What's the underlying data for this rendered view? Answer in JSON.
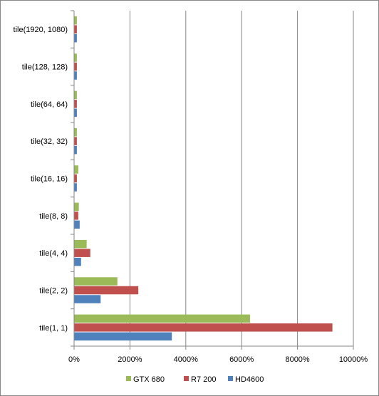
{
  "chart_data": {
    "type": "bar",
    "orientation": "horizontal",
    "categories": [
      "tile(1920, 1080)",
      "tile(128, 128)",
      "tile(64, 64)",
      "tile(32, 32)",
      "tile(16, 16)",
      "tile(8, 8)",
      "tile(4, 4)",
      "tile(2, 2)",
      "tile(1, 1)"
    ],
    "series": [
      {
        "name": "GTX 680",
        "color": "#9bbb59",
        "values": [
          100,
          100,
          100,
          100,
          150,
          170,
          450,
          1550,
          6300
        ]
      },
      {
        "name": "R7 200",
        "color": "#c0504d",
        "values": [
          100,
          100,
          100,
          100,
          100,
          150,
          580,
          2300,
          9250
        ]
      },
      {
        "name": "HD4600",
        "color": "#4f81bd",
        "values": [
          100,
          100,
          100,
          100,
          100,
          200,
          250,
          950,
          3500
        ]
      }
    ],
    "x_ticks": [
      "0%",
      "2000%",
      "4000%",
      "6000%",
      "8000%",
      "10000%"
    ],
    "xlim": [
      0,
      10000
    ],
    "grid": true,
    "legend": "bottom"
  }
}
